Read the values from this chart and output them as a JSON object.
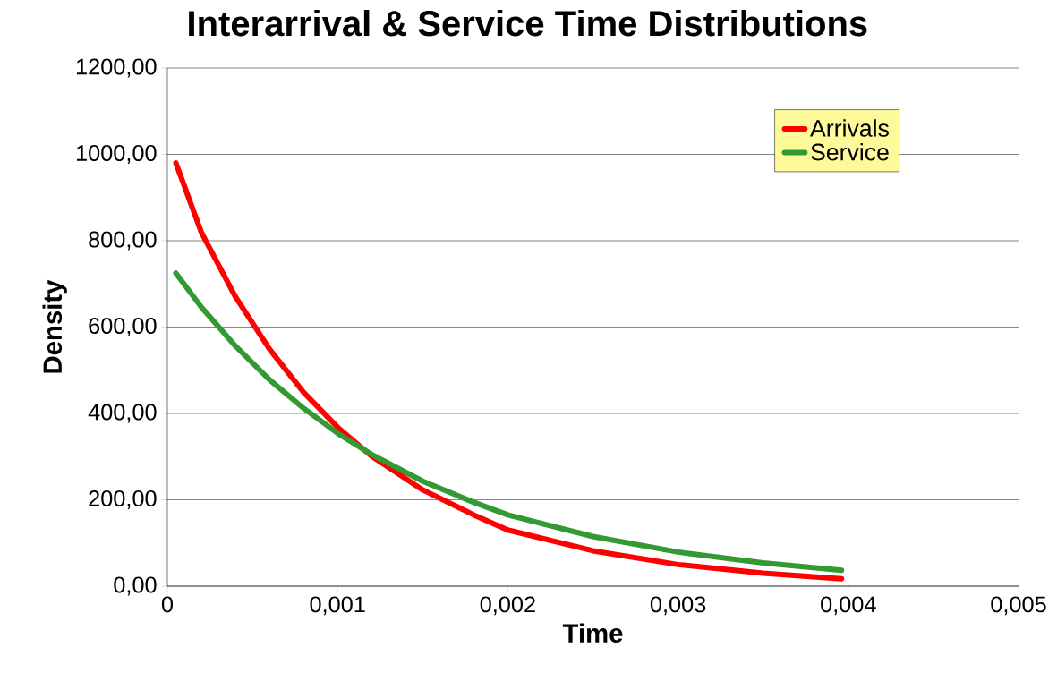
{
  "chart_data": {
    "type": "line",
    "title": "Interarrival & Service Time Distributions",
    "xlabel": "Time",
    "ylabel": "Density",
    "x": [
      5e-05,
      0.0002,
      0.0004,
      0.0006,
      0.0008,
      0.001,
      0.0012,
      0.0015,
      0.0018,
      0.002,
      0.0025,
      0.003,
      0.0035,
      0.00396
    ],
    "series": [
      {
        "name": "Arrivals",
        "color": "#ff0000",
        "values": [
          980,
          819,
          670,
          549,
          449,
          368,
          301,
          223,
          165,
          130,
          82,
          50,
          30,
          17
        ]
      },
      {
        "name": "Service",
        "color": "#339933",
        "values": [
          725,
          646,
          556,
          478,
          412,
          354,
          305,
          243,
          194,
          165,
          115,
          79,
          54,
          37
        ]
      }
    ],
    "xlim": [
      0,
      0.005
    ],
    "xticks": [
      0,
      {
        "value": 0.001,
        "label": "0,001"
      },
      {
        "value": 0.002,
        "label": "0,002"
      },
      {
        "value": 0.003,
        "label": "0,003"
      },
      {
        "value": 0.004,
        "label": "0,004"
      },
      {
        "value": 0.005,
        "label": "0,005"
      }
    ],
    "ylim": [
      0,
      1200
    ],
    "yticks": [
      {
        "value": 0,
        "label": "0,00"
      },
      {
        "value": 200,
        "label": "200,00"
      },
      {
        "value": 400,
        "label": "400,00"
      },
      {
        "value": 600,
        "label": "600,00"
      },
      {
        "value": 800,
        "label": "800,00"
      },
      {
        "value": 1000,
        "label": "1000,00"
      },
      {
        "value": 1200,
        "label": "1200,00"
      }
    ],
    "grid": "y",
    "legend": "top right",
    "marker": "none",
    "line_style": "solid"
  }
}
